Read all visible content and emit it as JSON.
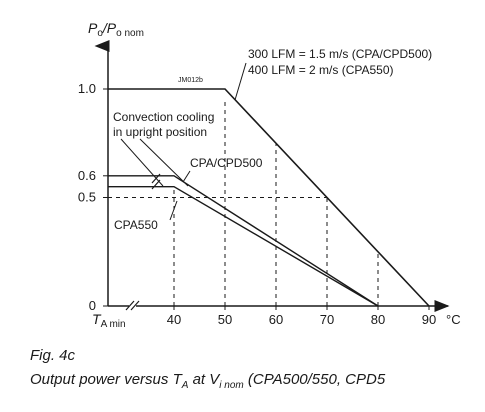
{
  "chart_data": {
    "type": "line",
    "y_axis_label": {
      "p": "P",
      "o1": "o",
      "slash": "/P",
      "o2": "o nom"
    },
    "x_axis_start_label": {
      "t": "T",
      "sub": "A min"
    },
    "x_unit": "°C",
    "code_label": "JM012b",
    "x_ticks": [
      {
        "value": 40,
        "label": "40"
      },
      {
        "value": 50,
        "label": "50"
      },
      {
        "value": 60,
        "label": "60"
      },
      {
        "value": 70,
        "label": "70"
      },
      {
        "value": 80,
        "label": "80"
      },
      {
        "value": 90,
        "label": "90"
      }
    ],
    "y_ticks": [
      {
        "value": 0,
        "label": "0"
      },
      {
        "value": 0.5,
        "label": "0.5"
      },
      {
        "value": 0.6,
        "label": "0.6"
      },
      {
        "value": 1.0,
        "label": "1.0"
      }
    ],
    "series": [
      {
        "name": "300 LFM = 1.5 m/s (CPA/CPD500) / 400 LFM = 2 m/s (CPA550)",
        "points": [
          [
            30,
            1.0
          ],
          [
            50,
            1.0
          ],
          [
            90,
            0
          ]
        ]
      },
      {
        "name": "CPA/CPD500 convection",
        "points": [
          [
            30,
            0.6
          ],
          [
            40,
            0.6
          ],
          [
            80,
            0
          ]
        ]
      },
      {
        "name": "CPA550 convection",
        "points": [
          [
            30,
            0.55
          ],
          [
            40,
            0.55
          ],
          [
            80,
            0
          ]
        ]
      }
    ],
    "annotations": {
      "airflow_line1": "300 LFM = 1.5 m/s (CPA/CPD500)",
      "airflow_line2": "400 LFM = 2 m/s (CPA550)",
      "convection_line1": "Convection cooling",
      "convection_line2": "in upright position",
      "cpa500": "CPA/CPD500",
      "cpa550": "CPA550"
    }
  },
  "caption": {
    "fig": "Fig. 4c",
    "line2_prefix": "Output power versus T",
    "line2_sub1": "A",
    "line2_mid": " at V",
    "line2_sub2": "i nom",
    "line2_suffix": " (CPA500/550, CPD5"
  }
}
